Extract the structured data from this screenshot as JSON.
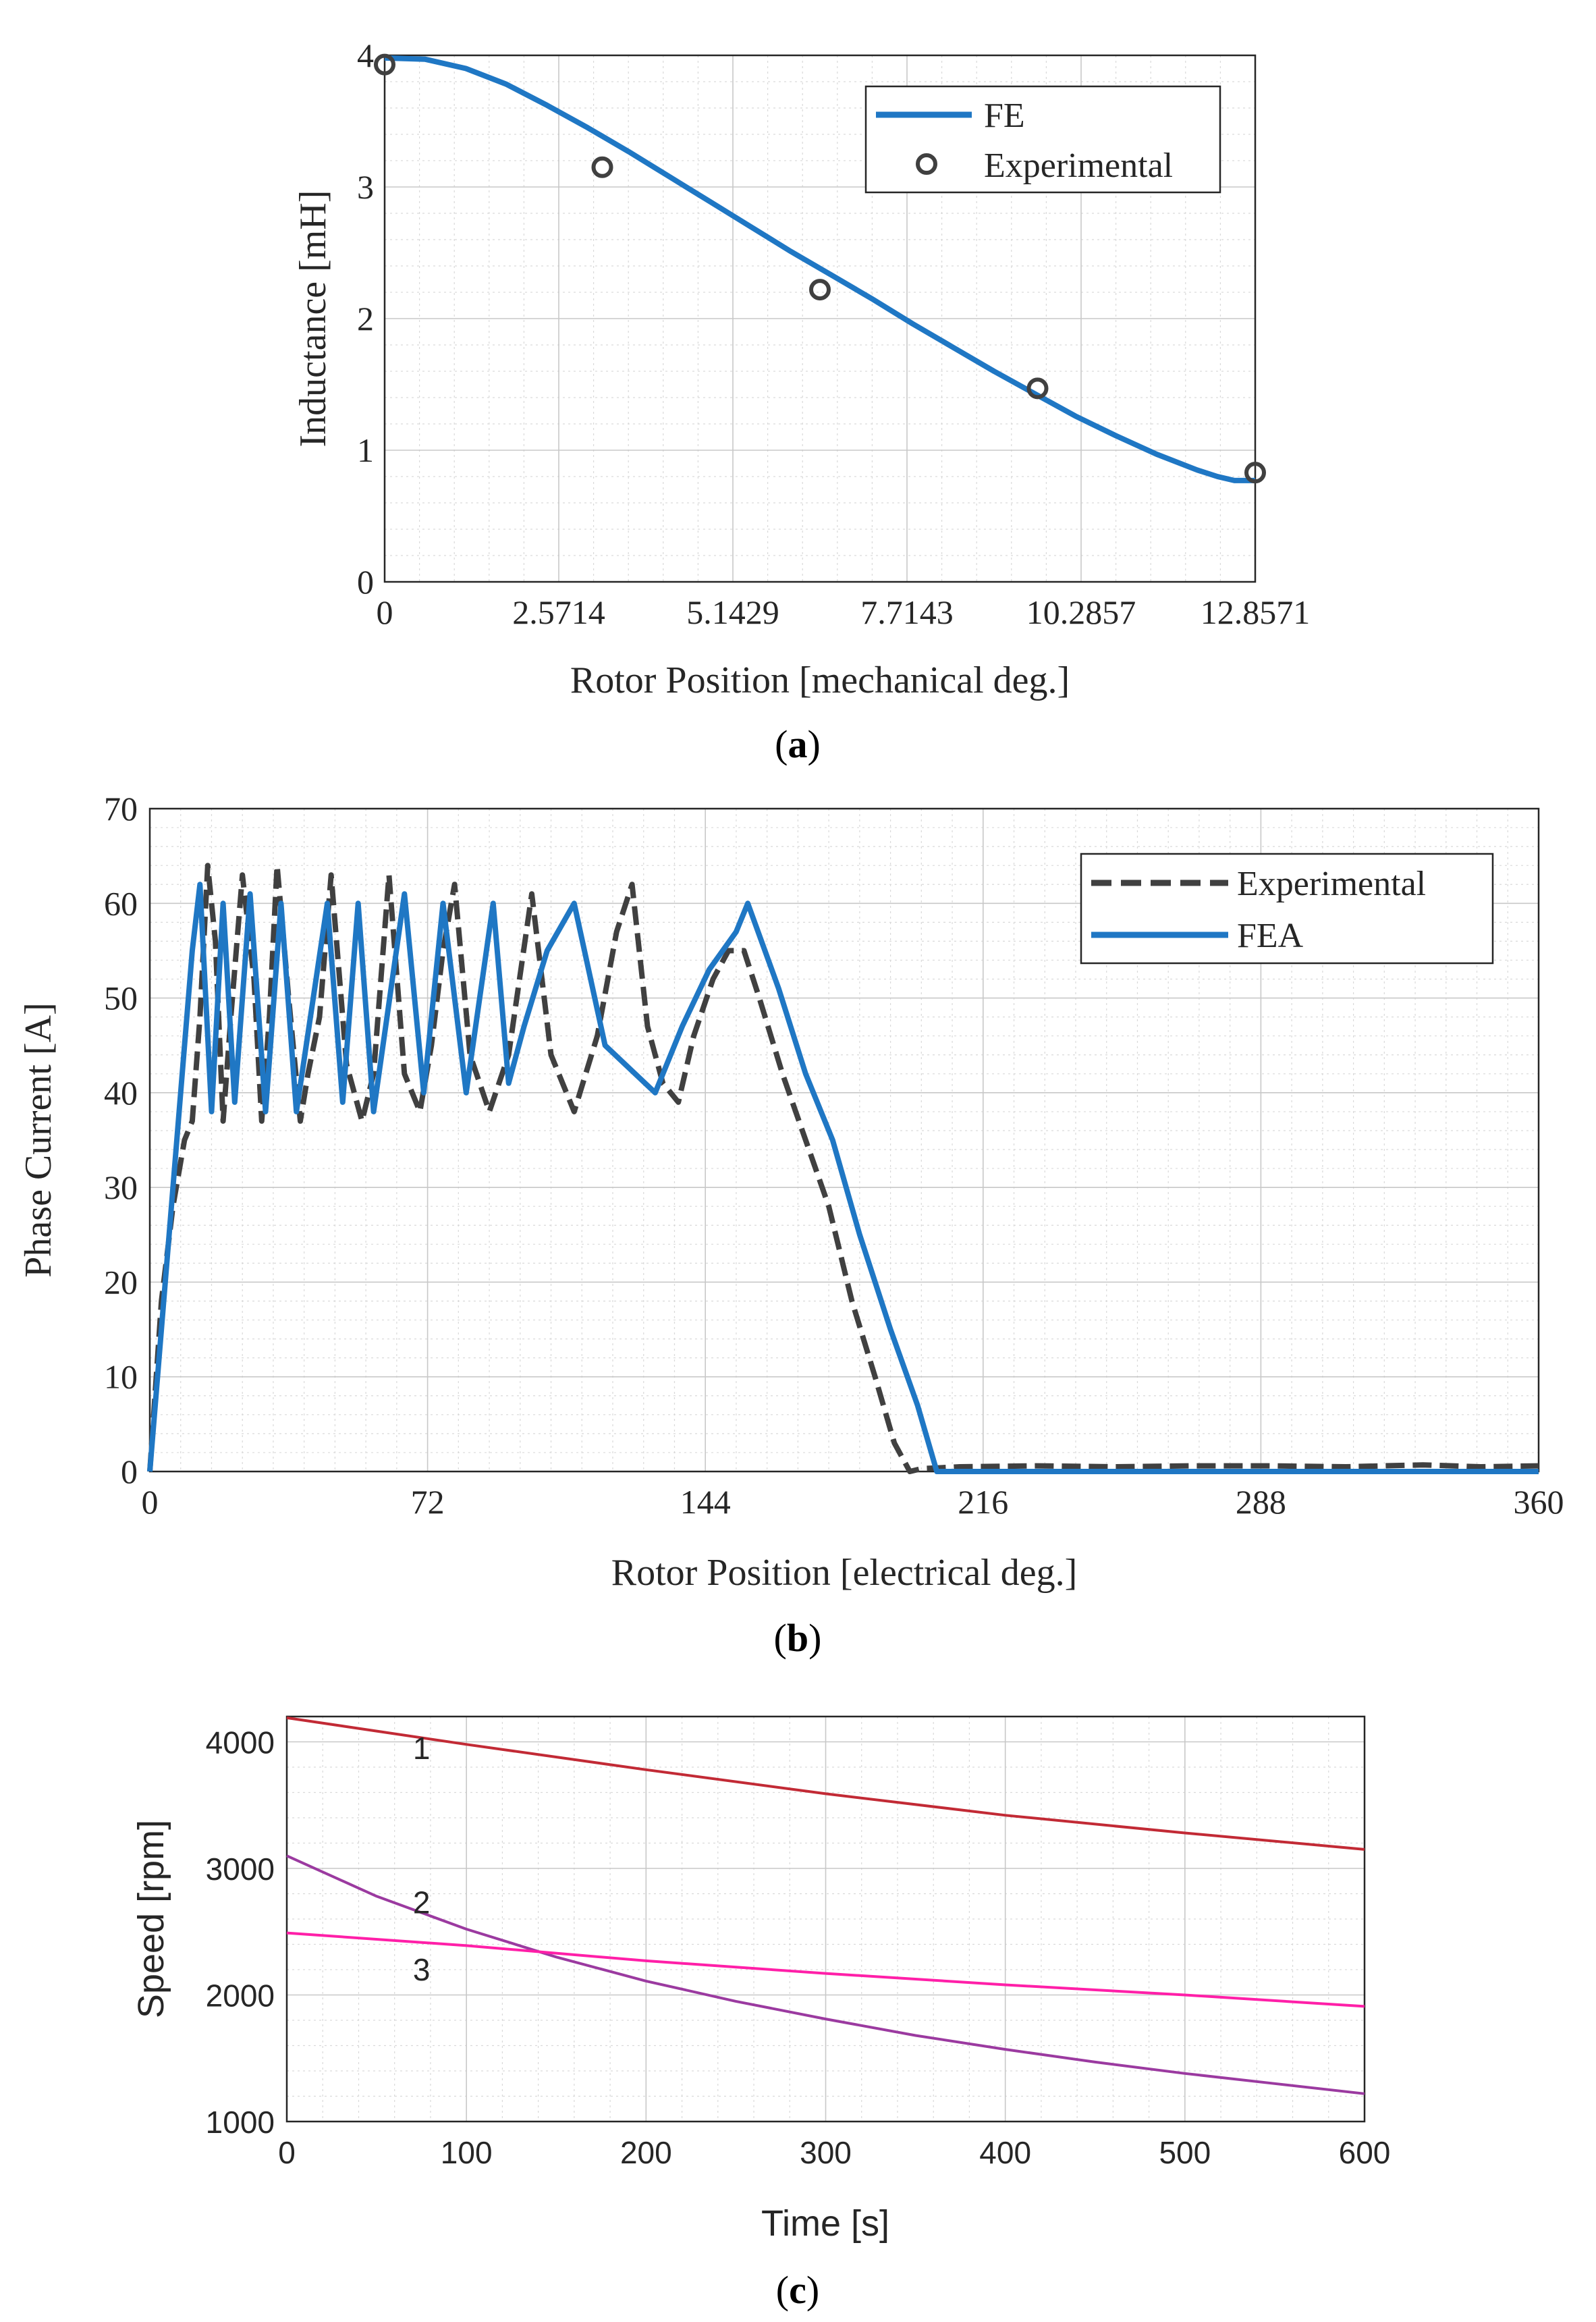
{
  "chart_data": [
    {
      "type": "line",
      "panel": "a",
      "caption": "a",
      "xlabel": "Rotor Position [mechanical deg.]",
      "ylabel": "Inductance [mH]",
      "xlim": [
        0,
        12.8571
      ],
      "ylim": [
        0,
        4
      ],
      "xticks": [
        0,
        2.5714,
        5.1429,
        7.7143,
        10.2857,
        12.8571
      ],
      "xtick_labels": [
        "0",
        "2.5714",
        "5.1429",
        "7.7143",
        "10.2857",
        "12.8571"
      ],
      "yticks": [
        0,
        1,
        2,
        3,
        4
      ],
      "ytick_labels": [
        "0",
        "1",
        "2",
        "3",
        "4"
      ],
      "grid": true,
      "legend_position": "top-right",
      "series": [
        {
          "name": "FE",
          "style": "solid",
          "marker": "none",
          "color": "#1f77c4",
          "x": [
            0,
            0.6,
            1.2,
            1.8,
            2.4,
            3.0,
            3.6,
            4.2,
            4.8,
            5.4,
            6.0,
            6.6,
            7.2,
            7.8,
            8.4,
            9.0,
            9.6,
            10.2,
            10.8,
            11.4,
            12.0,
            12.3,
            12.55,
            12.8571
          ],
          "y": [
            3.98,
            3.97,
            3.9,
            3.78,
            3.62,
            3.45,
            3.27,
            3.08,
            2.89,
            2.7,
            2.51,
            2.33,
            2.15,
            1.96,
            1.78,
            1.6,
            1.43,
            1.26,
            1.11,
            0.97,
            0.85,
            0.8,
            0.77,
            0.77
          ]
        },
        {
          "name": "Experimental",
          "style": "none",
          "marker": "circle",
          "color": "#404040",
          "x": [
            0,
            3.2143,
            6.4286,
            9.6429,
            12.8571
          ],
          "y": [
            3.93,
            3.15,
            2.22,
            1.47,
            0.83
          ]
        }
      ]
    },
    {
      "type": "line",
      "panel": "b",
      "caption": "b",
      "xlabel": "Rotor Position [electrical deg.]",
      "ylabel": "Phase Current [A]",
      "xlim": [
        0,
        360
      ],
      "ylim": [
        0,
        70
      ],
      "xticks": [
        0,
        72,
        144,
        216,
        288,
        360
      ],
      "xtick_labels": [
        "0",
        "72",
        "144",
        "216",
        "288",
        "360"
      ],
      "yticks": [
        0,
        10,
        20,
        30,
        40,
        50,
        60,
        70
      ],
      "ytick_labels": [
        "0",
        "10",
        "20",
        "30",
        "40",
        "50",
        "60",
        "70"
      ],
      "grid": true,
      "legend_position": "top-right",
      "series": [
        {
          "name": "Experimental",
          "style": "dashed",
          "color": "#404040",
          "x": [
            0,
            3,
            6,
            9,
            11,
            13,
            15,
            17,
            19,
            21,
            24,
            27,
            29,
            31,
            33,
            36,
            39,
            41,
            44,
            47,
            51,
            55,
            58,
            62,
            66,
            70,
            73,
            76,
            79,
            83,
            88,
            93,
            99,
            104,
            110,
            116,
            121,
            125,
            129,
            133,
            137,
            141,
            146,
            150,
            154,
            158,
            164,
            170,
            176,
            182,
            188,
            193,
            197,
            200,
            210,
            230,
            250,
            270,
            290,
            310,
            330,
            345,
            360
          ],
          "y": [
            0,
            18,
            28,
            35,
            37,
            48,
            64,
            56,
            37,
            48,
            63,
            52,
            37,
            48,
            64,
            50,
            37,
            42,
            48,
            63,
            43,
            37,
            42,
            63,
            42,
            38,
            45,
            55,
            62,
            44,
            38,
            44,
            61,
            44,
            38,
            46,
            57,
            62,
            47,
            41,
            39,
            46,
            52,
            55,
            55,
            50,
            42,
            35,
            28,
            18,
            10,
            3,
            0,
            0.3,
            0.5,
            0.6,
            0.5,
            0.6,
            0.6,
            0.5,
            0.7,
            0.5,
            0.6
          ]
        },
        {
          "name": "FEA",
          "style": "solid",
          "color": "#1f77c4",
          "x": [
            0,
            5,
            8,
            11,
            13,
            16,
            19,
            22,
            26,
            30,
            34,
            38,
            46,
            50,
            54,
            58,
            66,
            71,
            76,
            82,
            89,
            93,
            97,
            103,
            110,
            118,
            131,
            138,
            145,
            152,
            155,
            163,
            170,
            177,
            184,
            192,
            199,
            204,
            212,
            230,
            260,
            290,
            320,
            360
          ],
          "y": [
            0,
            25,
            40,
            55,
            62,
            38,
            60,
            39,
            61,
            38,
            60,
            38,
            60,
            39,
            60,
            38,
            61,
            40,
            60,
            40,
            60,
            41,
            47,
            55,
            60,
            45,
            40,
            47,
            53,
            57,
            60,
            51,
            42,
            35,
            25,
            15,
            7,
            0,
            0,
            0,
            0,
            0,
            0,
            0
          ]
        }
      ]
    },
    {
      "type": "line",
      "panel": "c",
      "caption": "c",
      "xlabel": "Time [s]",
      "ylabel": "Speed [rpm]",
      "xlim": [
        0,
        600
      ],
      "ylim": [
        1000,
        4200
      ],
      "xticks": [
        0,
        100,
        200,
        300,
        400,
        500,
        600
      ],
      "xtick_labels": [
        "0",
        "100",
        "200",
        "300",
        "400",
        "500",
        "600"
      ],
      "yticks": [
        1000,
        2000,
        3000,
        4000
      ],
      "ytick_labels": [
        "1000",
        "2000",
        "3000",
        "4000"
      ],
      "grid": true,
      "series": [
        {
          "name": "1",
          "color": "#c22a35",
          "x": [
            0,
            100,
            200,
            300,
            400,
            500,
            600
          ],
          "y": [
            4190,
            3980,
            3780,
            3590,
            3420,
            3280,
            3150
          ]
        },
        {
          "name": "2",
          "color": "#9b3aa0",
          "x": [
            0,
            50,
            100,
            150,
            200,
            250,
            300,
            350,
            400,
            450,
            500,
            550,
            600
          ],
          "y": [
            3100,
            2780,
            2520,
            2300,
            2110,
            1950,
            1810,
            1680,
            1570,
            1470,
            1380,
            1300,
            1220
          ]
        },
        {
          "name": "3",
          "color": "#ff1fa8",
          "x": [
            0,
            100,
            200,
            300,
            400,
            500,
            600
          ],
          "y": [
            2490,
            2390,
            2270,
            2170,
            2080,
            2000,
            1910
          ]
        }
      ],
      "curve_labels": [
        {
          "text": "1",
          "x": 75,
          "y": 3950
        },
        {
          "text": "2",
          "x": 75,
          "y": 2730
        },
        {
          "text": "3",
          "x": 75,
          "y": 2200
        }
      ]
    }
  ]
}
